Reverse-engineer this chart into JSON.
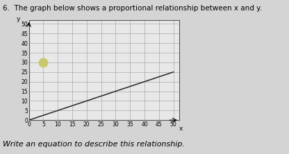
{
  "title": "6.  The graph below shows a proportional relationship between x and y.",
  "xlabel": "x",
  "ylabel": "y",
  "xlim": [
    0,
    52
  ],
  "ylim": [
    0,
    52
  ],
  "xticks": [
    0,
    5,
    10,
    15,
    20,
    25,
    30,
    35,
    40,
    45,
    50
  ],
  "yticks": [
    0,
    5,
    10,
    15,
    20,
    25,
    30,
    35,
    40,
    45,
    50
  ],
  "line_x": [
    0,
    50
  ],
  "line_y": [
    0,
    25
  ],
  "line_color": "#333333",
  "line_width": 1.2,
  "dot_x": 5,
  "dot_y": 30,
  "dot_color": "#c8c86e",
  "dot_size": 80,
  "grid_color": "#aaaaaa",
  "background_color": "#e8e8e8",
  "subtitle": "Write an equation to describe this relationship.",
  "subtitle_fontsize": 8,
  "title_fontsize": 7.5,
  "tick_fontsize": 5.5
}
